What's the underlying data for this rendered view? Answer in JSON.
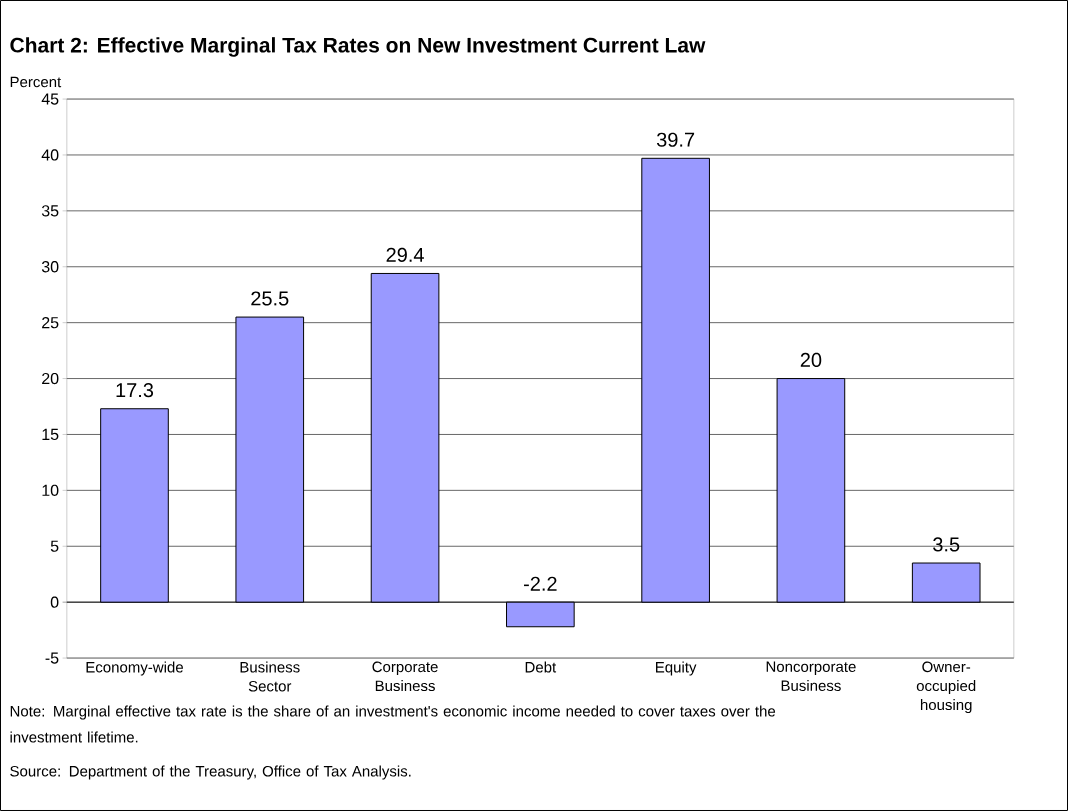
{
  "chart_data": {
    "type": "bar",
    "title": "Chart 2:  Effective Marginal Tax Rates on New Investment Current Law",
    "ylabel": "Percent",
    "categories": [
      "Economy-wide",
      "Business Sector",
      "Corporate Business",
      "Debt",
      "Equity",
      "Noncorporate Business",
      "Owner-occupied housing"
    ],
    "values": [
      17.3,
      25.5,
      29.4,
      -2.2,
      39.7,
      20,
      3.5
    ],
    "color": "#9999ff",
    "data_labels": true,
    "grid": "y",
    "ylim": [
      -5,
      45
    ],
    "yticks": [
      -5,
      0,
      5,
      10,
      15,
      20,
      25,
      30,
      35,
      40,
      45
    ],
    "annotations": [
      "Note:  Marginal effective tax rate is the share of an investment's economic income needed to cover taxes over the investment lifetime.",
      "Source:  Department of the Treasury, Office of Tax Analysis."
    ]
  }
}
